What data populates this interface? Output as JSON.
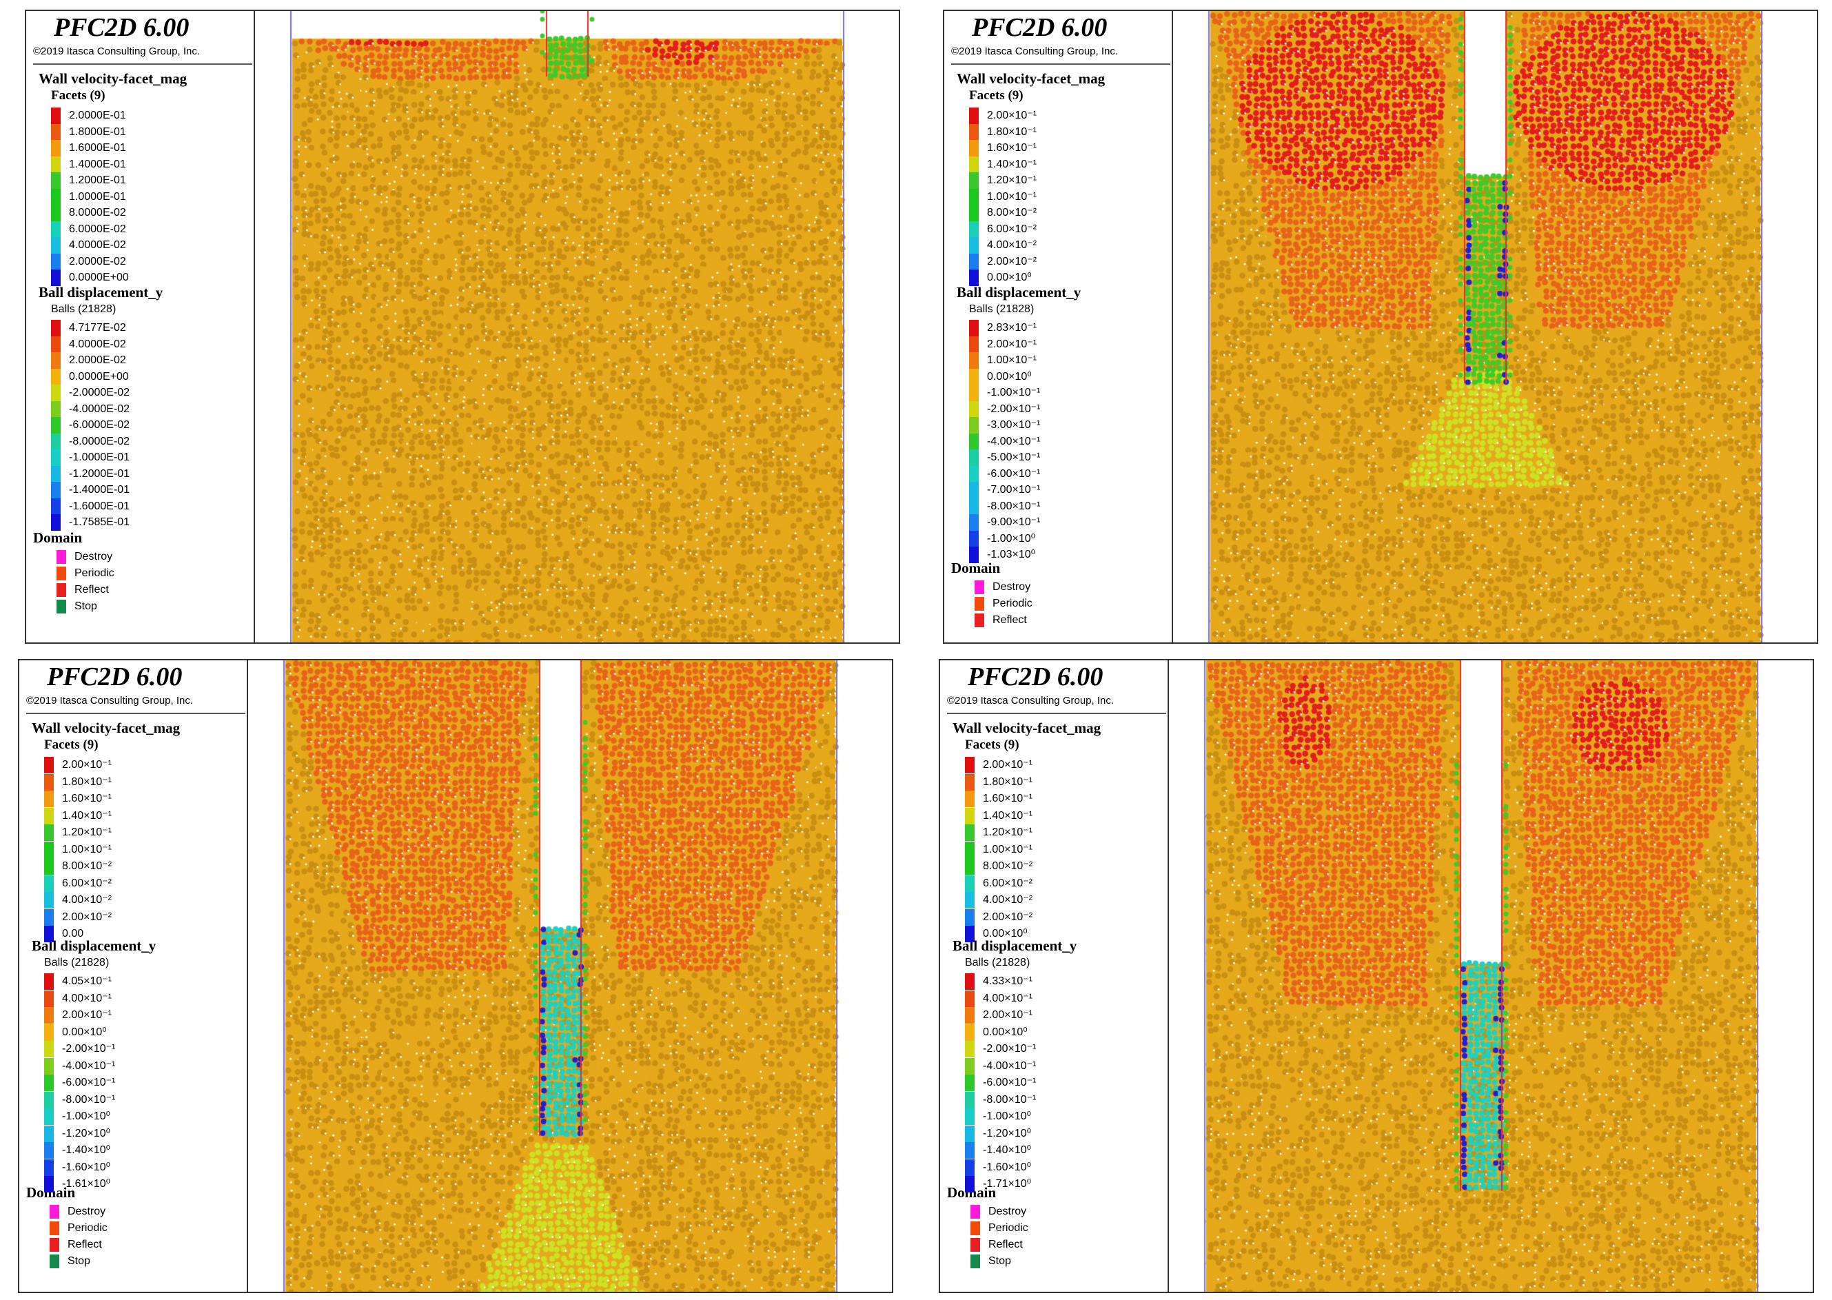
{
  "app": {
    "title": "PFC2D 6.00",
    "copyright": "©2019 Itasca Consulting Group, Inc."
  },
  "colors": {
    "soil": "#e6a91c",
    "soil_dark": "#c98e12",
    "heave": "#e8631a",
    "heave_strong": "#e21d1d",
    "pile_green": "#3ccc2a",
    "pile_cyan": "#19d2c4",
    "pile_blue": "#2020d0",
    "plug_yellow": "#cde224",
    "wall_line": "#e03030",
    "boundary_line": "#6f6fe8"
  },
  "palette_wall": [
    "#e01010",
    "#ea5a0e",
    "#f29a0c",
    "#cfd60e",
    "#38c72c",
    "#1cc81c",
    "#18d0b8",
    "#18bfe0",
    "#1a7ef0",
    "#1010d8"
  ],
  "palette_ball": [
    "#e01010",
    "#ea4a0e",
    "#f07a0c",
    "#f4b00c",
    "#cdd80e",
    "#7ccd1c",
    "#2cc82c",
    "#1ccfa0",
    "#18cfc8",
    "#18b8e6",
    "#1a80f0",
    "#1540e8",
    "#1010d8"
  ],
  "domain_colors": [
    "#ff1ad9",
    "#f24a0a",
    "#e82020",
    "#128a4c"
  ],
  "panels": [
    {
      "wall_title": "Wall velocity-facet_mag",
      "facets": "Facets (9)",
      "wall_values": [
        "2.0000E-01",
        "1.8000E-01",
        "1.6000E-01",
        "1.4000E-01",
        "1.2000E-01",
        "1.0000E-01",
        "8.0000E-02",
        "6.0000E-02",
        "4.0000E-02",
        "2.0000E-02",
        "0.0000E+00"
      ],
      "ball_title": "Ball displacement_y",
      "balls": "Balls (21828)",
      "ball_values": [
        "4.7177E-02",
        "4.0000E-02",
        "2.0000E-02",
        "0.0000E+00",
        "-2.0000E-02",
        "-4.0000E-02",
        "-6.0000E-02",
        "-8.0000E-02",
        "-1.0000E-01",
        "-1.2000E-01",
        "-1.4000E-01",
        "-1.6000E-01",
        "-1.7585E-01"
      ],
      "domain_title": "Domain",
      "domain_items": [
        "Destroy",
        "Periodic",
        "Reflect",
        "Stop"
      ]
    },
    {
      "wall_title": "Wall velocity-facet_mag",
      "facets": "Facets (9)",
      "wall_values": [
        "2.00×10⁻¹",
        "1.80×10⁻¹",
        "1.60×10⁻¹",
        "1.40×10⁻¹",
        "1.20×10⁻¹",
        "1.00×10⁻¹",
        "8.00×10⁻²",
        "6.00×10⁻²",
        "4.00×10⁻²",
        "2.00×10⁻²",
        "0.00×10⁰"
      ],
      "ball_title": "Ball displacement_y",
      "balls": "Balls (21828)",
      "ball_values": [
        "2.83×10⁻¹",
        "2.00×10⁻¹",
        "1.00×10⁻¹",
        "0.00×10⁰",
        "-1.00×10⁻¹",
        "-2.00×10⁻¹",
        "-3.00×10⁻¹",
        "-4.00×10⁻¹",
        "-5.00×10⁻¹",
        "-6.00×10⁻¹",
        "-7.00×10⁻¹",
        "-8.00×10⁻¹",
        "-9.00×10⁻¹",
        "-1.00×10⁰",
        "-1.03×10⁰"
      ],
      "domain_title": "Domain",
      "domain_items": [
        "Destroy",
        "Periodic",
        "Reflect"
      ]
    },
    {
      "wall_title": "Wall velocity-facet_mag",
      "facets": "Facets (9)",
      "wall_values": [
        "2.00×10⁻¹",
        "1.80×10⁻¹",
        "1.60×10⁻¹",
        "1.40×10⁻¹",
        "1.20×10⁻¹",
        "1.00×10⁻¹",
        "8.00×10⁻²",
        "6.00×10⁻²",
        "4.00×10⁻²",
        "2.00×10⁻²",
        "0.00"
      ],
      "ball_title": "Ball displacement_y",
      "balls": "Balls (21828)",
      "ball_values": [
        "4.05×10⁻¹",
        "4.00×10⁻¹",
        "2.00×10⁻¹",
        "0.00×10⁰",
        "-2.00×10⁻¹",
        "-4.00×10⁻¹",
        "-6.00×10⁻¹",
        "-8.00×10⁻¹",
        "-1.00×10⁰",
        "-1.20×10⁰",
        "-1.40×10⁰",
        "-1.60×10⁰",
        "-1.61×10⁰"
      ],
      "domain_title": "Domain",
      "domain_items": [
        "Destroy",
        "Periodic",
        "Reflect",
        "Stop"
      ]
    },
    {
      "wall_title": "Wall velocity-facet_mag",
      "facets": "Facets (9)",
      "wall_values": [
        "2.00×10⁻¹",
        "1.80×10⁻¹",
        "1.60×10⁻¹",
        "1.40×10⁻¹",
        "1.20×10⁻¹",
        "1.00×10⁻¹",
        "8.00×10⁻²",
        "6.00×10⁻²",
        "4.00×10⁻²",
        "2.00×10⁻²",
        "0.00×10⁰"
      ],
      "ball_title": "Ball displacement_y",
      "balls": "Balls (21828)",
      "ball_values": [
        "4.33×10⁻¹",
        "4.00×10⁻¹",
        "2.00×10⁻¹",
        "0.00×10⁰",
        "-2.00×10⁻¹",
        "-4.00×10⁻¹",
        "-6.00×10⁻¹",
        "-8.00×10⁻¹",
        "-1.00×10⁰",
        "-1.20×10⁰",
        "-1.40×10⁰",
        "-1.60×10⁰",
        "-1.71×10⁰"
      ],
      "domain_title": "Domain",
      "domain_items": [
        "Destroy",
        "Periodic",
        "Reflect",
        "Stop"
      ]
    }
  ]
}
